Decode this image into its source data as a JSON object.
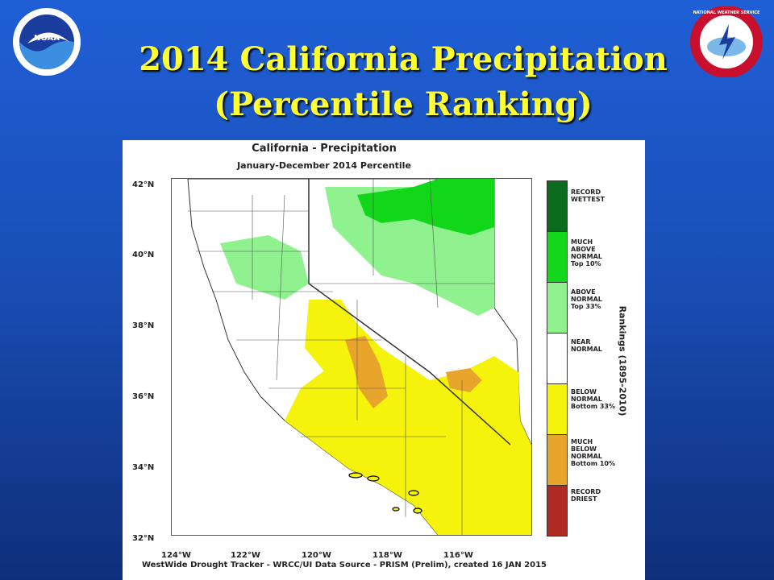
{
  "slide": {
    "title_line1": "2014 California Precipitation",
    "title_line2": "(Percentile Ranking)",
    "logo_left": "NOAA",
    "logo_right": "NATIONAL WEATHER SERVICE"
  },
  "map": {
    "title": "California - Precipitation",
    "subtitle": "January-December 2014 Percentile",
    "latitude_labels": [
      "42°N",
      "40°N",
      "38°N",
      "36°N",
      "34°N",
      "32°N"
    ],
    "longitude_labels": [
      "124°W",
      "122°W",
      "120°W",
      "118°W",
      "116°W"
    ],
    "footer": "WestWide Drought Tracker - WRCC/UI  Data Source - PRISM (Prelim), created 16 JAN 2015",
    "legend_title": "Rankings (1895-2010)",
    "legend": [
      {
        "label": "RECORD\nWETTEST",
        "color": "#0a6b1e"
      },
      {
        "label": "MUCH\nABOVE\nNORMAL\nTop 10%",
        "color": "#11d619"
      },
      {
        "label": "ABOVE\nNORMAL\nTop 33%",
        "color": "#8ff28f"
      },
      {
        "label": "NEAR\nNORMAL",
        "color": "#ffffff"
      },
      {
        "label": "BELOW\nNORMAL\nBottom 33%",
        "color": "#f5f20c"
      },
      {
        "label": "MUCH\nBELOW\nNORMAL\nBottom 10%",
        "color": "#e8a52b"
      },
      {
        "label": "RECORD\nDRIEST",
        "color": "#b02a24"
      }
    ]
  }
}
